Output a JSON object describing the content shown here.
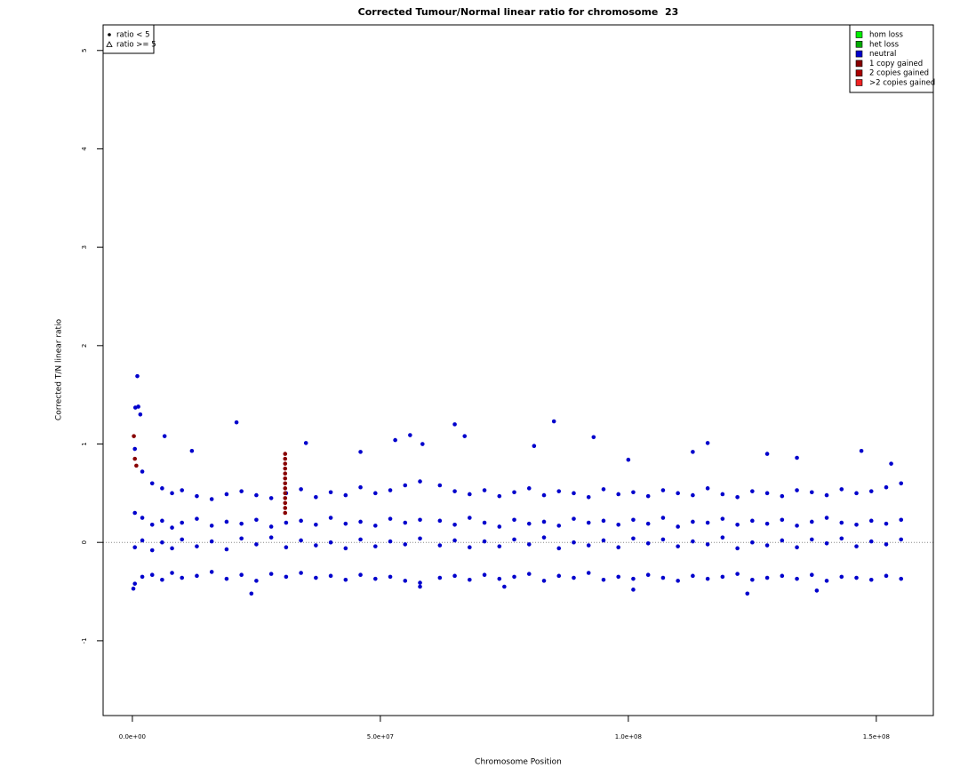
{
  "chart_data": {
    "type": "scatter",
    "title": "Corrected Tumour/Normal linear ratio for chromosome  23",
    "x_label": "Chromosome Position",
    "y_label": "Corrected T/N linear ratio",
    "xlim": [
      -5900000,
      161500000
    ],
    "ylim": [
      -1.76,
      5.26
    ],
    "xticks": [
      {
        "value": 0,
        "label": "0.0e+00"
      },
      {
        "value": 50000000,
        "label": "5.0e+07"
      },
      {
        "value": 100000000,
        "label": "1.0e+08"
      },
      {
        "value": 150000000,
        "label": "1.5e+08"
      }
    ],
    "yticks": [
      -1,
      0,
      1,
      2,
      3,
      4,
      5
    ],
    "hline": 0,
    "shape_legend": [
      "ratio < 5",
      "ratio >= 5"
    ],
    "legend": "top-right",
    "series": [
      {
        "name": "hom loss",
        "color": "#00ee00",
        "x": [],
        "values": []
      },
      {
        "name": "het loss",
        "color": "#00aa00",
        "x": [],
        "values": []
      },
      {
        "name": "neutral",
        "color": "#0000cc",
        "x": [
          500000,
          500000,
          500000,
          500000,
          2000000,
          2000000,
          2000000,
          2000000,
          4000000,
          4000000,
          4000000,
          4000000,
          6000000,
          6000000,
          6000000,
          6000000,
          8000000,
          8000000,
          8000000,
          8000000,
          10000000,
          10000000,
          10000000,
          10000000,
          13000000,
          13000000,
          13000000,
          13000000,
          16000000,
          16000000,
          16000000,
          16000000,
          19000000,
          19000000,
          19000000,
          19000000,
          22000000,
          22000000,
          22000000,
          22000000,
          25000000,
          25000000,
          25000000,
          25000000,
          28000000,
          28000000,
          28000000,
          28000000,
          31000000,
          31000000,
          31000000,
          31000000,
          34000000,
          34000000,
          34000000,
          34000000,
          37000000,
          37000000,
          37000000,
          37000000,
          40000000,
          40000000,
          40000000,
          40000000,
          43000000,
          43000000,
          43000000,
          43000000,
          46000000,
          46000000,
          46000000,
          46000000,
          49000000,
          49000000,
          49000000,
          49000000,
          52000000,
          52000000,
          52000000,
          52000000,
          55000000,
          55000000,
          55000000,
          55000000,
          58000000,
          58000000,
          58000000,
          58000000,
          62000000,
          62000000,
          62000000,
          62000000,
          65000000,
          65000000,
          65000000,
          65000000,
          68000000,
          68000000,
          68000000,
          68000000,
          71000000,
          71000000,
          71000000,
          71000000,
          74000000,
          74000000,
          74000000,
          74000000,
          77000000,
          77000000,
          77000000,
          77000000,
          80000000,
          80000000,
          80000000,
          80000000,
          83000000,
          83000000,
          83000000,
          83000000,
          86000000,
          86000000,
          86000000,
          86000000,
          89000000,
          89000000,
          89000000,
          89000000,
          92000000,
          92000000,
          92000000,
          92000000,
          95000000,
          95000000,
          95000000,
          95000000,
          98000000,
          98000000,
          98000000,
          98000000,
          101000000,
          101000000,
          101000000,
          101000000,
          104000000,
          104000000,
          104000000,
          104000000,
          107000000,
          107000000,
          107000000,
          107000000,
          110000000,
          110000000,
          110000000,
          110000000,
          113000000,
          113000000,
          113000000,
          113000000,
          116000000,
          116000000,
          116000000,
          116000000,
          119000000,
          119000000,
          119000000,
          119000000,
          122000000,
          122000000,
          122000000,
          122000000,
          125000000,
          125000000,
          125000000,
          125000000,
          128000000,
          128000000,
          128000000,
          128000000,
          131000000,
          131000000,
          131000000,
          131000000,
          134000000,
          134000000,
          134000000,
          134000000,
          137000000,
          137000000,
          137000000,
          137000000,
          140000000,
          140000000,
          140000000,
          140000000,
          143000000,
          143000000,
          143000000,
          143000000,
          146000000,
          146000000,
          146000000,
          146000000,
          149000000,
          149000000,
          149000000,
          149000000,
          152000000,
          152000000,
          152000000,
          152000000,
          155000000,
          155000000,
          155000000,
          155000000,
          1000000,
          1200000,
          600000,
          1600000,
          21000000,
          85000000,
          65000000,
          93000000,
          67000000,
          116000000,
          35000000,
          53000000,
          56000000,
          58500000,
          81000000,
          46000000,
          100000000,
          147000000,
          113000000,
          128000000,
          134000000,
          153000000,
          6500000,
          12000000,
          24000000,
          124000000,
          138000000,
          200000,
          101000000,
          58000000,
          75000000
        ],
        "values": [
          0.95,
          0.3,
          -0.05,
          -0.42,
          0.72,
          0.25,
          0.02,
          -0.35,
          0.6,
          0.18,
          -0.08,
          -0.33,
          0.55,
          0.22,
          0.0,
          -0.38,
          0.5,
          0.15,
          -0.06,
          -0.31,
          0.53,
          0.2,
          0.03,
          -0.36,
          0.47,
          0.24,
          -0.04,
          -0.34,
          0.44,
          0.17,
          0.01,
          -0.3,
          0.49,
          0.21,
          -0.07,
          -0.37,
          0.52,
          0.19,
          0.04,
          -0.33,
          0.48,
          0.23,
          -0.02,
          -0.39,
          0.45,
          0.16,
          0.05,
          -0.32,
          0.5,
          0.2,
          -0.05,
          -0.35,
          0.54,
          0.22,
          0.02,
          -0.31,
          0.46,
          0.18,
          -0.03,
          -0.36,
          0.51,
          0.25,
          0.0,
          -0.34,
          0.48,
          0.19,
          -0.06,
          -0.38,
          0.56,
          0.21,
          0.03,
          -0.33,
          0.5,
          0.17,
          -0.04,
          -0.37,
          0.53,
          0.24,
          0.01,
          -0.35,
          0.58,
          0.2,
          -0.02,
          -0.39,
          0.62,
          0.23,
          0.04,
          -0.41,
          0.58,
          0.22,
          -0.03,
          -0.36,
          0.52,
          0.18,
          0.02,
          -0.34,
          0.49,
          0.25,
          -0.05,
          -0.38,
          0.53,
          0.2,
          0.01,
          -0.33,
          0.47,
          0.16,
          -0.04,
          -0.37,
          0.51,
          0.23,
          0.03,
          -0.35,
          0.55,
          0.19,
          -0.02,
          -0.32,
          0.48,
          0.21,
          0.05,
          -0.39,
          0.52,
          0.17,
          -0.06,
          -0.34,
          0.5,
          0.24,
          0.0,
          -0.36,
          0.46,
          0.2,
          -0.03,
          -0.31,
          0.54,
          0.22,
          0.02,
          -0.38,
          0.49,
          0.18,
          -0.05,
          -0.35,
          0.51,
          0.23,
          0.04,
          -0.37,
          0.47,
          0.19,
          -0.01,
          -0.33,
          0.53,
          0.25,
          0.03,
          -0.36,
          0.5,
          0.16,
          -0.04,
          -0.39,
          0.48,
          0.21,
          0.01,
          -0.34,
          0.55,
          0.2,
          -0.02,
          -0.37,
          0.49,
          0.24,
          0.05,
          -0.35,
          0.46,
          0.18,
          -0.06,
          -0.32,
          0.52,
          0.22,
          0.0,
          -0.38,
          0.5,
          0.19,
          -0.03,
          -0.36,
          0.47,
          0.23,
          0.02,
          -0.34,
          0.53,
          0.17,
          -0.05,
          -0.37,
          0.51,
          0.21,
          0.03,
          -0.33,
          0.48,
          0.25,
          -0.01,
          -0.39,
          0.54,
          0.2,
          0.04,
          -0.35,
          0.5,
          0.18,
          -0.04,
          -0.36,
          0.52,
          0.22,
          0.01,
          -0.38,
          0.56,
          0.19,
          -0.02,
          -0.34,
          0.6,
          0.23,
          0.03,
          -0.37,
          1.69,
          1.38,
          1.37,
          1.3,
          1.22,
          1.23,
          1.2,
          1.07,
          1.08,
          1.01,
          1.01,
          1.04,
          1.09,
          1.0,
          0.98,
          0.92,
          0.84,
          0.93,
          0.92,
          0.9,
          0.86,
          0.8,
          1.08,
          0.93,
          -0.52,
          -0.52,
          -0.49,
          -0.47,
          -0.48,
          -0.45,
          -0.45
        ]
      },
      {
        "name": "1 copy gained",
        "color": "#880000",
        "x": [
          30800000,
          30800000,
          30800000,
          30800000,
          30800000,
          30800000,
          30800000,
          30800000,
          30800000,
          30800000,
          30800000,
          30800000,
          30800000,
          300000,
          500000,
          800000
        ],
        "values": [
          0.9,
          0.85,
          0.8,
          0.75,
          0.7,
          0.65,
          0.6,
          0.55,
          0.5,
          0.45,
          0.4,
          0.35,
          0.3,
          1.08,
          0.85,
          0.78
        ]
      },
      {
        "name": "2 copies gained",
        "color": "#aa0000",
        "x": [],
        "values": []
      },
      {
        "name": ">2 copies gained",
        "color": "#ee2222",
        "x": [],
        "values": []
      }
    ]
  }
}
